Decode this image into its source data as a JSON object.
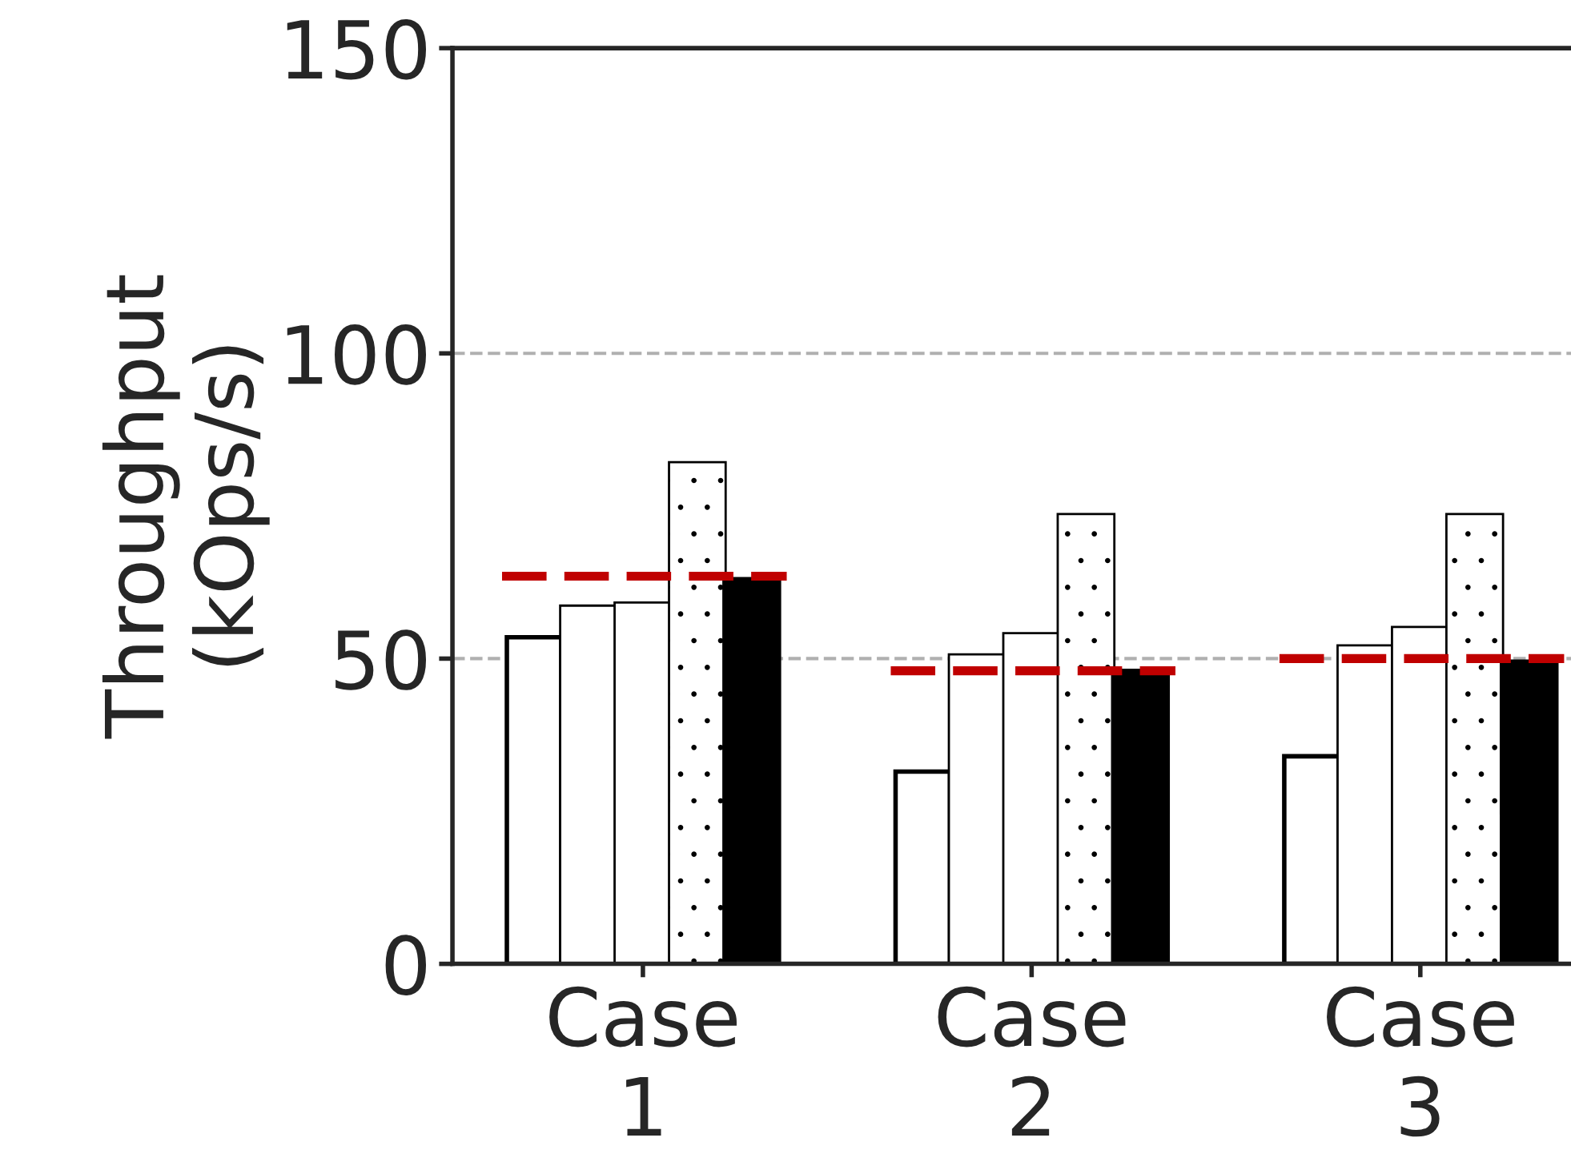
{
  "chart_data": {
    "type": "bar",
    "ylabel": "Throughput\n(kOps/s)",
    "categories": [
      "Case\n1",
      "Case\n2",
      "Case\n3"
    ],
    "series": [
      {
        "color": "#ffffff",
        "values": [
          53.5,
          31.5,
          34
        ]
      },
      {
        "color": "#ffffff",
        "values": [
          58.5,
          50.5,
          52
        ]
      },
      {
        "color": "#ffffff",
        "values": [
          59,
          54,
          55
        ]
      },
      {
        "color": "#ffffff",
        "values": [
          82,
          73.5,
          73.5
        ]
      },
      {
        "color": "#000000",
        "values": [
          63,
          48,
          49.5
        ]
      }
    ],
    "ref_lines": [
      {
        "axis": "y",
        "value": 63.5,
        "color": "#c00000",
        "line_style": "dashed"
      },
      {
        "axis": "y",
        "value": 48,
        "color": "#c00000",
        "line_style": "dashed"
      },
      {
        "axis": "y",
        "value": 50,
        "color": "#c00000",
        "line_style": "dashed"
      }
    ],
    "ylim": [
      0,
      150
    ],
    "yticks": [
      0,
      50,
      100,
      150
    ],
    "grid": "y",
    "legend": false
  }
}
